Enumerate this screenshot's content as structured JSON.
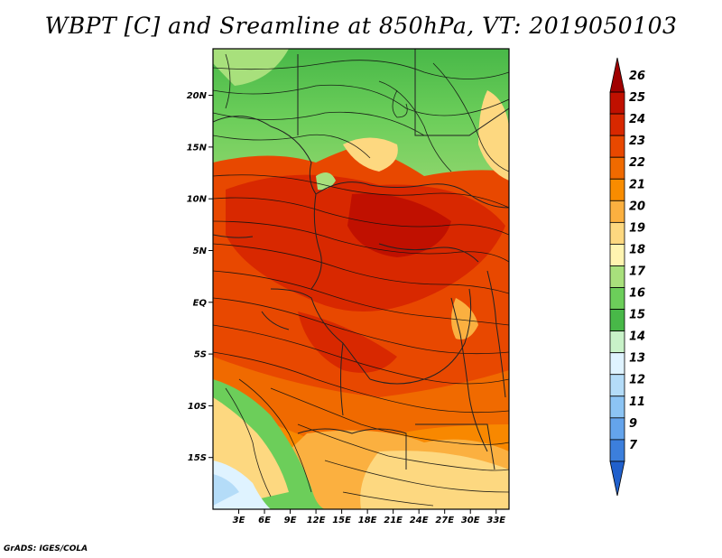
{
  "title": "WBPT [C] and Sreamline at 850hPa, VT: 2019050103",
  "map": {
    "variable": "WBPT [C]",
    "level": "850hPa",
    "valid_time": "2019050103",
    "lat_ticks": [
      "20N",
      "15N",
      "10N",
      "5N",
      "EQ",
      "5S",
      "10S",
      "15S"
    ],
    "lat_values": [
      20,
      15,
      10,
      5,
      0,
      -5,
      -10,
      -15
    ],
    "lon_ticks": [
      "3E",
      "6E",
      "9E",
      "12E",
      "15E",
      "18E",
      "21E",
      "24E",
      "27E",
      "30E",
      "33E"
    ],
    "lon_values": [
      3,
      6,
      9,
      12,
      15,
      18,
      21,
      24,
      27,
      30,
      33
    ],
    "lon_range": [
      0,
      34.5
    ],
    "lat_range": [
      -20,
      24.5
    ]
  },
  "colorbar": {
    "labels": [
      "26",
      "25",
      "24",
      "23",
      "22",
      "21",
      "20",
      "19",
      "18",
      "17",
      "16",
      "15",
      "14",
      "13",
      "12",
      "11",
      "9",
      "7"
    ],
    "colors": [
      "#a00000",
      "#c01000",
      "#d82800",
      "#e84800",
      "#f06a00",
      "#f88c00",
      "#fbb040",
      "#fdd880",
      "#fff4b0",
      "#a8e07c",
      "#6cce5a",
      "#48b848",
      "#c8f2c8",
      "#dff3ff",
      "#b4dcf8",
      "#8cc4f4",
      "#64a4ec",
      "#3c7fdc",
      "#2060cc"
    ]
  },
  "credit": "GrADS: IGES/COLA"
}
